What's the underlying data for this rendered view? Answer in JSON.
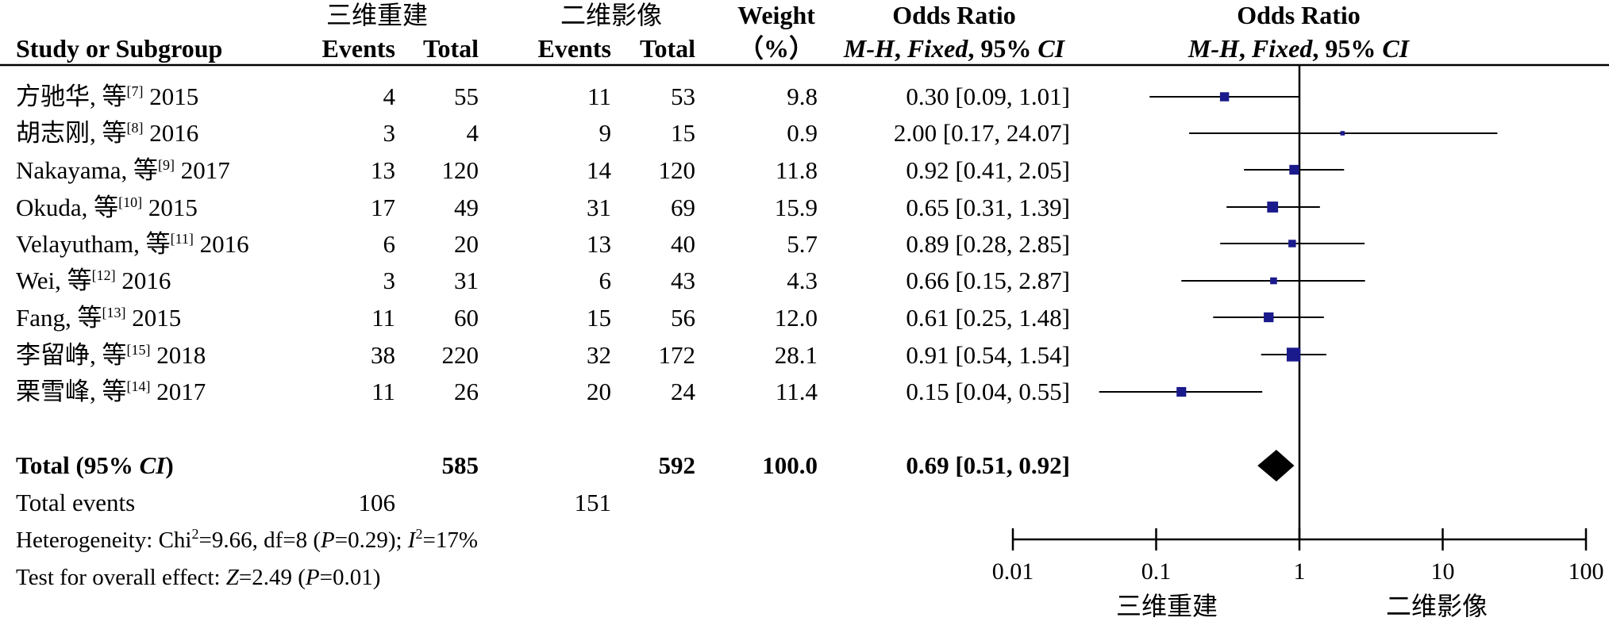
{
  "header": {
    "col_study": "Study or Subgroup",
    "group1": "三维重建",
    "group2": "二维影像",
    "events": "Events",
    "total": "Total",
    "weight_line1": "Weight",
    "weight_line2": "（%）",
    "or_title": "Odds Ratio",
    "or_method_a": "M-H",
    "or_method_b": ", ",
    "or_method_c": "Fixed",
    "or_method_d": ", 95% ",
    "or_method_e": "CI",
    "plot_title": "Odds Ratio"
  },
  "studies": [
    {
      "name": "方驰华, 等",
      "ref": "[7]",
      "year": "2015",
      "e1": "4",
      "t1": "55",
      "e2": "11",
      "t2": "53",
      "weight": "9.8",
      "ci_text": "0.30 [0.09, 1.01]"
    },
    {
      "name": "胡志刚, 等",
      "ref": "[8]",
      "year": "2016",
      "e1": "3",
      "t1": "4",
      "e2": "9",
      "t2": "15",
      "weight": "0.9",
      "ci_text": "2.00 [0.17, 24.07]"
    },
    {
      "name": "Nakayama, 等",
      "ref": "[9]",
      "year": "2017",
      "e1": "13",
      "t1": "120",
      "e2": "14",
      "t2": "120",
      "weight": "11.8",
      "ci_text": "0.92 [0.41, 2.05]"
    },
    {
      "name": "Okuda, 等",
      "ref": "[10]",
      "year": "2015",
      "e1": "17",
      "t1": "49",
      "e2": "31",
      "t2": "69",
      "weight": "15.9",
      "ci_text": "0.65 [0.31, 1.39]"
    },
    {
      "name": "Velayutham, 等",
      "ref": "[11]",
      "year": "2016",
      "e1": "6",
      "t1": "20",
      "e2": "13",
      "t2": "40",
      "weight": "5.7",
      "ci_text": "0.89 [0.28, 2.85]"
    },
    {
      "name": "Wei, 等",
      "ref": "[12]",
      "year": "2016",
      "e1": "3",
      "t1": "31",
      "e2": "6",
      "t2": "43",
      "weight": "4.3",
      "ci_text": "0.66 [0.15, 2.87]"
    },
    {
      "name": "Fang, 等",
      "ref": "[13]",
      "year": "2015",
      "e1": "11",
      "t1": "60",
      "e2": "15",
      "t2": "56",
      "weight": "12.0",
      "ci_text": "0.61 [0.25, 1.48]"
    },
    {
      "name": "李留峥, 等",
      "ref": "[15]",
      "year": "2018",
      "e1": "38",
      "t1": "220",
      "e2": "32",
      "t2": "172",
      "weight": "28.1",
      "ci_text": "0.91 [0.54, 1.54]"
    },
    {
      "name": "栗雪峰, 等",
      "ref": "[14]",
      "year": "2017",
      "e1": "11",
      "t1": "26",
      "e2": "20",
      "t2": "24",
      "weight": "11.4",
      "ci_text": "0.15 [0.04, 0.55]"
    }
  ],
  "total": {
    "label_a": "Total (95% ",
    "label_b": "CI",
    "label_c": ")",
    "t1": "585",
    "t2": "592",
    "weight": "100.0",
    "ci_text": "0.69 [0.51, 0.92]"
  },
  "events_row": {
    "label": "Total events",
    "e1": "106",
    "e2": "151"
  },
  "heterogeneity": {
    "a": "Heterogeneity: Chi",
    "sup1": "2",
    "b": "=9.66, df=8 (",
    "c": "P",
    "d": "=0.29); ",
    "e": "I",
    "sup2": "2",
    "f": "=17%"
  },
  "overall": {
    "a": "Test for overall effect: ",
    "b": "Z",
    "c": "=2.49 (",
    "d": "P",
    "e": "=0.01)"
  },
  "axis": {
    "favours_left": "三维重建",
    "favours_right": "二维影像"
  },
  "chart_data": {
    "type": "forest",
    "xscale": "log",
    "xlim": [
      0.01,
      100
    ],
    "xticks": [
      0.01,
      0.1,
      1,
      10,
      100
    ],
    "xtick_labels": [
      "0.01",
      "0.1",
      "1",
      "10",
      "100"
    ],
    "reference_line": 1,
    "marker_color": "#1a1a8c",
    "points": [
      {
        "or": 0.3,
        "lo": 0.09,
        "hi": 1.01,
        "weight": 9.8
      },
      {
        "or": 2.0,
        "lo": 0.17,
        "hi": 24.07,
        "weight": 0.9
      },
      {
        "or": 0.92,
        "lo": 0.41,
        "hi": 2.05,
        "weight": 11.8
      },
      {
        "or": 0.65,
        "lo": 0.31,
        "hi": 1.39,
        "weight": 15.9
      },
      {
        "or": 0.89,
        "lo": 0.28,
        "hi": 2.85,
        "weight": 5.7
      },
      {
        "or": 0.66,
        "lo": 0.15,
        "hi": 2.87,
        "weight": 4.3
      },
      {
        "or": 0.61,
        "lo": 0.25,
        "hi": 1.48,
        "weight": 12.0
      },
      {
        "or": 0.91,
        "lo": 0.54,
        "hi": 1.54,
        "weight": 28.1
      },
      {
        "or": 0.15,
        "lo": 0.04,
        "hi": 0.55,
        "weight": 11.4
      }
    ],
    "pooled": {
      "or": 0.69,
      "lo": 0.51,
      "hi": 0.92
    }
  }
}
